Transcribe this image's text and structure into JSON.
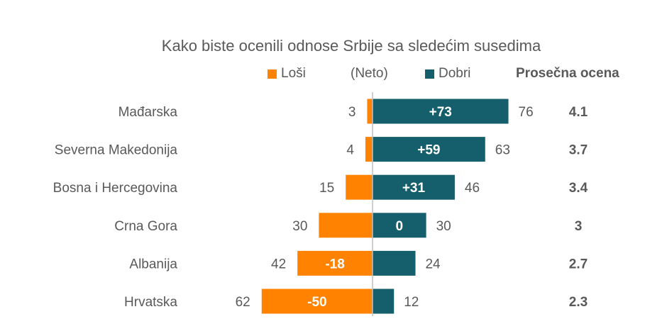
{
  "colors": {
    "bad": "#FF8200",
    "good": "#155E6B",
    "axis": "#BFBFBF",
    "text": "#595959",
    "label_inside": "#ffffff"
  },
  "legend": {
    "bad_label": "Loši",
    "net_label": "(Neto)",
    "good_label": "Dobri",
    "avg_header": "Prosečna ocena"
  },
  "chart_data": {
    "type": "bar",
    "orientation": "horizontal-diverging",
    "title": "Kako biste ocenili odnose Srbije sa sledećim susedima",
    "categories": [
      "Mađarska",
      "Severna Makedonija",
      "Bosna i Hercegovina",
      "Crna Gora",
      "Albanija",
      "Hrvatska"
    ],
    "series": [
      {
        "name": "Loši",
        "values": [
          3,
          4,
          15,
          30,
          42,
          62
        ]
      },
      {
        "name": "Dobri",
        "values": [
          76,
          63,
          46,
          30,
          24,
          12
        ]
      }
    ],
    "net_labels": [
      "+73",
      "+59",
      "+31",
      "0",
      "-18",
      "-50"
    ],
    "average_scores": [
      "4.1",
      "3.7",
      "3.4",
      "3",
      "2.7",
      "2.3"
    ],
    "xlim": [
      -62,
      76
    ]
  }
}
